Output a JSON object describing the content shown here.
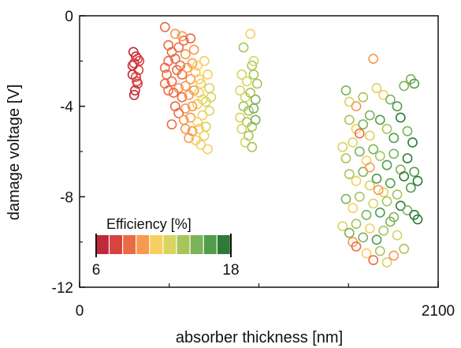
{
  "chart_data": {
    "type": "scatter",
    "title": "",
    "xlabel": "absorber thickness [nm]",
    "ylabel": "damage voltage [V]",
    "xlim": [
      0,
      2100
    ],
    "ylim": [
      -12,
      0
    ],
    "x_ticks": [
      0,
      2100
    ],
    "y_ticks": [
      0,
      -4,
      -8,
      -12
    ],
    "grid": false,
    "colorbar": {
      "title": "Efficiency [%]",
      "min": 6,
      "max": 18,
      "min_label": "6",
      "max_label": "18",
      "placement": "bottom-left",
      "colors": [
        "#c0293a",
        "#d8433e",
        "#ea6b44",
        "#f59a4e",
        "#f7cf5e",
        "#d8d462",
        "#a8c55a",
        "#7ab35a",
        "#4f9e4c",
        "#2e7a36"
      ]
    },
    "series": [
      {
        "points": [
          {
            "x": 320,
            "y": -2.1,
            "eff": 7.2
          },
          {
            "x": 330,
            "y": -1.8,
            "eff": 6.8
          },
          {
            "x": 310,
            "y": -2.6,
            "eff": 7.0
          },
          {
            "x": 340,
            "y": -3.0,
            "eff": 7.5
          },
          {
            "x": 325,
            "y": -3.3,
            "eff": 6.9
          },
          {
            "x": 345,
            "y": -2.4,
            "eff": 7.3
          },
          {
            "x": 315,
            "y": -1.6,
            "eff": 7.1
          },
          {
            "x": 335,
            "y": -2.9,
            "eff": 7.8
          },
          {
            "x": 320,
            "y": -3.5,
            "eff": 6.7
          },
          {
            "x": 350,
            "y": -2.0,
            "eff": 7.4
          },
          {
            "x": 310,
            "y": -2.2,
            "eff": 7.0
          },
          {
            "x": 340,
            "y": -1.9,
            "eff": 7.6
          },
          {
            "x": 330,
            "y": -2.7,
            "eff": 7.2
          },
          {
            "x": 500,
            "y": -0.5,
            "eff": 9.5
          },
          {
            "x": 520,
            "y": -1.3,
            "eff": 9.0
          },
          {
            "x": 560,
            "y": -0.8,
            "eff": 9.8
          },
          {
            "x": 610,
            "y": -1.1,
            "eff": 9.2
          },
          {
            "x": 600,
            "y": -0.9,
            "eff": 9.6
          },
          {
            "x": 650,
            "y": -1.0,
            "eff": 9.4
          },
          {
            "x": 540,
            "y": -1.6,
            "eff": 8.8
          },
          {
            "x": 520,
            "y": -2.0,
            "eff": 8.6
          },
          {
            "x": 560,
            "y": -1.9,
            "eff": 9.1
          },
          {
            "x": 590,
            "y": -2.2,
            "eff": 9.3
          },
          {
            "x": 620,
            "y": -1.7,
            "eff": 9.7
          },
          {
            "x": 510,
            "y": -2.6,
            "eff": 8.9
          },
          {
            "x": 540,
            "y": -2.9,
            "eff": 9.5
          },
          {
            "x": 570,
            "y": -2.4,
            "eff": 9.0
          },
          {
            "x": 600,
            "y": -2.6,
            "eff": 8.7
          },
          {
            "x": 630,
            "y": -2.3,
            "eff": 10.2
          },
          {
            "x": 660,
            "y": -2.1,
            "eff": 10.6
          },
          {
            "x": 680,
            "y": -2.5,
            "eff": 11.0
          },
          {
            "x": 700,
            "y": -2.8,
            "eff": 11.4
          },
          {
            "x": 710,
            "y": -3.0,
            "eff": 10.8
          },
          {
            "x": 690,
            "y": -2.2,
            "eff": 11.2
          },
          {
            "x": 650,
            "y": -2.8,
            "eff": 10.4
          },
          {
            "x": 620,
            "y": -3.1,
            "eff": 10.0
          },
          {
            "x": 580,
            "y": -3.2,
            "eff": 9.6
          },
          {
            "x": 550,
            "y": -3.4,
            "eff": 9.2
          },
          {
            "x": 520,
            "y": -3.3,
            "eff": 8.8
          },
          {
            "x": 600,
            "y": -3.6,
            "eff": 9.4
          },
          {
            "x": 640,
            "y": -3.5,
            "eff": 10.1
          },
          {
            "x": 670,
            "y": -3.3,
            "eff": 10.7
          },
          {
            "x": 700,
            "y": -3.4,
            "eff": 11.3
          },
          {
            "x": 720,
            "y": -3.7,
            "eff": 11.6
          },
          {
            "x": 690,
            "y": -3.9,
            "eff": 11.0
          },
          {
            "x": 660,
            "y": -4.0,
            "eff": 10.5
          },
          {
            "x": 620,
            "y": -4.1,
            "eff": 9.9
          },
          {
            "x": 580,
            "y": -4.3,
            "eff": 9.3
          },
          {
            "x": 560,
            "y": -4.0,
            "eff": 9.0
          },
          {
            "x": 610,
            "y": -4.6,
            "eff": 9.6
          },
          {
            "x": 650,
            "y": -4.5,
            "eff": 10.3
          },
          {
            "x": 690,
            "y": -4.7,
            "eff": 11.1
          },
          {
            "x": 720,
            "y": -4.4,
            "eff": 11.5
          },
          {
            "x": 700,
            "y": -5.0,
            "eff": 10.9
          },
          {
            "x": 660,
            "y": -5.1,
            "eff": 10.4
          },
          {
            "x": 620,
            "y": -5.0,
            "eff": 9.8
          },
          {
            "x": 640,
            "y": -5.4,
            "eff": 10.0
          },
          {
            "x": 680,
            "y": -5.5,
            "eff": 10.8
          },
          {
            "x": 710,
            "y": -5.7,
            "eff": 11.2
          },
          {
            "x": 730,
            "y": -5.3,
            "eff": 11.7
          },
          {
            "x": 750,
            "y": -5.9,
            "eff": 11.4
          },
          {
            "x": 740,
            "y": -4.9,
            "eff": 12.2
          },
          {
            "x": 760,
            "y": -4.2,
            "eff": 12.6
          },
          {
            "x": 760,
            "y": -3.2,
            "eff": 12.4
          },
          {
            "x": 750,
            "y": -2.6,
            "eff": 11.9
          },
          {
            "x": 740,
            "y": -3.8,
            "eff": 12.0
          },
          {
            "x": 770,
            "y": -3.6,
            "eff": 13.0
          },
          {
            "x": 540,
            "y": -4.8,
            "eff": 9.1
          },
          {
            "x": 500,
            "y": -3.0,
            "eff": 8.5
          },
          {
            "x": 500,
            "y": -2.3,
            "eff": 8.7
          },
          {
            "x": 730,
            "y": -2.0,
            "eff": 11.8
          },
          {
            "x": 670,
            "y": -1.5,
            "eff": 10.3
          },
          {
            "x": 580,
            "y": -1.4,
            "eff": 9.4
          },
          {
            "x": 1000,
            "y": -0.8,
            "eff": 11.5
          },
          {
            "x": 960,
            "y": -1.4,
            "eff": 13.5
          },
          {
            "x": 1010,
            "y": -2.2,
            "eff": 13.2
          },
          {
            "x": 950,
            "y": -2.6,
            "eff": 12.6
          },
          {
            "x": 980,
            "y": -2.9,
            "eff": 12.9
          },
          {
            "x": 1020,
            "y": -2.6,
            "eff": 13.7
          },
          {
            "x": 1040,
            "y": -3.0,
            "eff": 14.2
          },
          {
            "x": 940,
            "y": -3.3,
            "eff": 12.2
          },
          {
            "x": 970,
            "y": -3.6,
            "eff": 13.1
          },
          {
            "x": 1000,
            "y": -3.4,
            "eff": 13.8
          },
          {
            "x": 1030,
            "y": -3.7,
            "eff": 14.4
          },
          {
            "x": 960,
            "y": -4.0,
            "eff": 13.4
          },
          {
            "x": 990,
            "y": -4.2,
            "eff": 14.0
          },
          {
            "x": 1020,
            "y": -4.1,
            "eff": 14.6
          },
          {
            "x": 940,
            "y": -4.5,
            "eff": 12.8
          },
          {
            "x": 980,
            "y": -4.7,
            "eff": 13.6
          },
          {
            "x": 1010,
            "y": -4.9,
            "eff": 14.1
          },
          {
            "x": 1030,
            "y": -4.6,
            "eff": 14.5
          },
          {
            "x": 950,
            "y": -5.0,
            "eff": 12.4
          },
          {
            "x": 990,
            "y": -5.3,
            "eff": 13.3
          },
          {
            "x": 970,
            "y": -5.6,
            "eff": 12.7
          },
          {
            "x": 1010,
            "y": -5.8,
            "eff": 14.3
          },
          {
            "x": 1020,
            "y": -2.0,
            "eff": 12.1
          },
          {
            "x": 1720,
            "y": -1.9,
            "eff": 10.5
          },
          {
            "x": 1560,
            "y": -3.3,
            "eff": 15.5
          },
          {
            "x": 1580,
            "y": -3.8,
            "eff": 12.5
          },
          {
            "x": 1620,
            "y": -4.0,
            "eff": 10.2
          },
          {
            "x": 1660,
            "y": -3.6,
            "eff": 14.0
          },
          {
            "x": 1700,
            "y": -4.4,
            "eff": 15.0
          },
          {
            "x": 1740,
            "y": -3.2,
            "eff": 13.0
          },
          {
            "x": 1780,
            "y": -3.5,
            "eff": 11.5
          },
          {
            "x": 1820,
            "y": -3.7,
            "eff": 14.5
          },
          {
            "x": 1860,
            "y": -4.0,
            "eff": 16.0
          },
          {
            "x": 1900,
            "y": -3.1,
            "eff": 15.5
          },
          {
            "x": 1940,
            "y": -2.8,
            "eff": 14.8
          },
          {
            "x": 1960,
            "y": -3.0,
            "eff": 16.5
          },
          {
            "x": 1580,
            "y": -4.6,
            "eff": 14.2
          },
          {
            "x": 1620,
            "y": -5.0,
            "eff": 11.0
          },
          {
            "x": 1660,
            "y": -4.8,
            "eff": 15.2
          },
          {
            "x": 1700,
            "y": -5.3,
            "eff": 12.8
          },
          {
            "x": 1760,
            "y": -4.6,
            "eff": 16.2
          },
          {
            "x": 1800,
            "y": -5.0,
            "eff": 13.6
          },
          {
            "x": 1840,
            "y": -5.4,
            "eff": 15.8
          },
          {
            "x": 1880,
            "y": -4.5,
            "eff": 16.8
          },
          {
            "x": 1920,
            "y": -5.1,
            "eff": 14.6
          },
          {
            "x": 1950,
            "y": -5.6,
            "eff": 17.0
          },
          {
            "x": 1540,
            "y": -5.8,
            "eff": 12.0
          },
          {
            "x": 1560,
            "y": -6.3,
            "eff": 14.0
          },
          {
            "x": 1600,
            "y": -5.6,
            "eff": 12.6
          },
          {
            "x": 1640,
            "y": -6.0,
            "eff": 15.5
          },
          {
            "x": 1680,
            "y": -6.4,
            "eff": 11.6
          },
          {
            "x": 1720,
            "y": -5.9,
            "eff": 15.0
          },
          {
            "x": 1760,
            "y": -6.2,
            "eff": 13.2
          },
          {
            "x": 1800,
            "y": -6.6,
            "eff": 16.4
          },
          {
            "x": 1840,
            "y": -6.1,
            "eff": 14.4
          },
          {
            "x": 1880,
            "y": -6.8,
            "eff": 15.6
          },
          {
            "x": 1920,
            "y": -6.3,
            "eff": 17.2
          },
          {
            "x": 1960,
            "y": -6.9,
            "eff": 16.0
          },
          {
            "x": 1580,
            "y": -7.0,
            "eff": 13.6
          },
          {
            "x": 1620,
            "y": -7.3,
            "eff": 10.8
          },
          {
            "x": 1660,
            "y": -6.9,
            "eff": 14.6
          },
          {
            "x": 1700,
            "y": -7.5,
            "eff": 12.2
          },
          {
            "x": 1740,
            "y": -7.2,
            "eff": 15.8
          },
          {
            "x": 1780,
            "y": -7.8,
            "eff": 13.0
          },
          {
            "x": 1820,
            "y": -7.4,
            "eff": 16.6
          },
          {
            "x": 1860,
            "y": -7.9,
            "eff": 14.0
          },
          {
            "x": 1900,
            "y": -7.1,
            "eff": 17.4
          },
          {
            "x": 1940,
            "y": -7.6,
            "eff": 16.2
          },
          {
            "x": 1980,
            "y": -7.3,
            "eff": 17.6
          },
          {
            "x": 1560,
            "y": -8.1,
            "eff": 14.8
          },
          {
            "x": 1600,
            "y": -8.5,
            "eff": 11.4
          },
          {
            "x": 1640,
            "y": -8.0,
            "eff": 13.8
          },
          {
            "x": 1680,
            "y": -8.8,
            "eff": 15.4
          },
          {
            "x": 1720,
            "y": -8.3,
            "eff": 12.4
          },
          {
            "x": 1760,
            "y": -8.7,
            "eff": 16.0
          },
          {
            "x": 1800,
            "y": -8.2,
            "eff": 13.4
          },
          {
            "x": 1840,
            "y": -8.9,
            "eff": 15.2
          },
          {
            "x": 1880,
            "y": -8.4,
            "eff": 16.8
          },
          {
            "x": 1920,
            "y": -8.6,
            "eff": 14.4
          },
          {
            "x": 1960,
            "y": -8.8,
            "eff": 17.8
          },
          {
            "x": 1980,
            "y": -9.0,
            "eff": 17.0
          },
          {
            "x": 1540,
            "y": -9.3,
            "eff": 12.6
          },
          {
            "x": 1580,
            "y": -9.6,
            "eff": 15.6
          },
          {
            "x": 1620,
            "y": -9.2,
            "eff": 13.2
          },
          {
            "x": 1660,
            "y": -9.8,
            "eff": 14.8
          },
          {
            "x": 1700,
            "y": -9.4,
            "eff": 11.8
          },
          {
            "x": 1740,
            "y": -9.9,
            "eff": 16.4
          },
          {
            "x": 1780,
            "y": -9.5,
            "eff": 13.6
          },
          {
            "x": 1820,
            "y": -9.1,
            "eff": 15.0
          },
          {
            "x": 1860,
            "y": -9.7,
            "eff": 12.8
          },
          {
            "x": 1600,
            "y": -10.0,
            "eff": 9.6
          },
          {
            "x": 1620,
            "y": -10.2,
            "eff": 8.8
          },
          {
            "x": 1680,
            "y": -10.5,
            "eff": 11.2
          },
          {
            "x": 1720,
            "y": -10.8,
            "eff": 9.4
          },
          {
            "x": 1760,
            "y": -10.4,
            "eff": 13.8
          },
          {
            "x": 1800,
            "y": -10.9,
            "eff": 12.0
          },
          {
            "x": 1840,
            "y": -10.6,
            "eff": 10.6
          },
          {
            "x": 1900,
            "y": -10.3,
            "eff": 14.2
          },
          {
            "x": 1640,
            "y": -5.2,
            "eff": 8.6
          },
          {
            "x": 1700,
            "y": -6.7,
            "eff": 9.8
          },
          {
            "x": 1750,
            "y": -7.7,
            "eff": 10.4
          }
        ]
      }
    ]
  }
}
